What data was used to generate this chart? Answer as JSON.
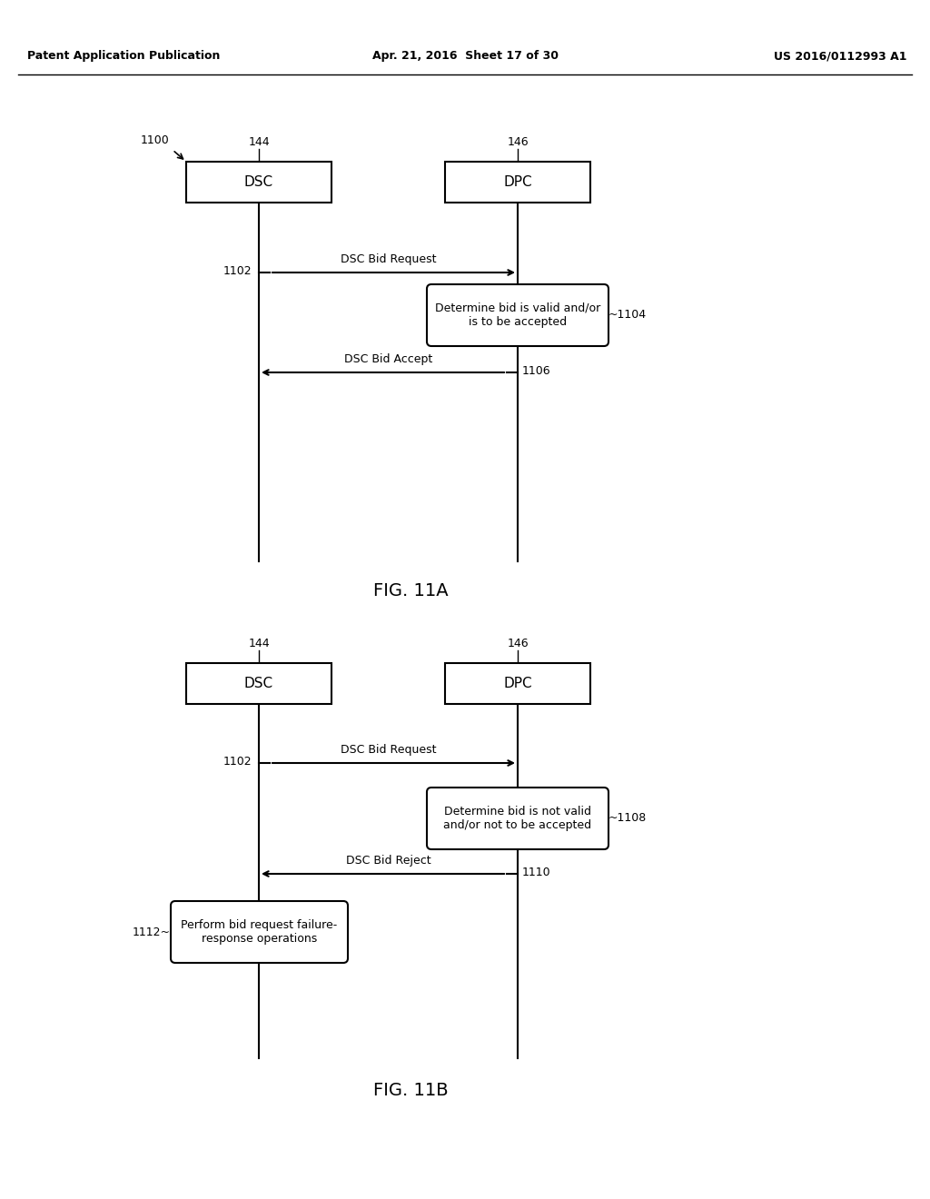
{
  "header_left": "Patent Application Publication",
  "header_mid": "Apr. 21, 2016  Sheet 17 of 30",
  "header_right": "US 2016/0112993 A1",
  "fig_a_label": "FIG. 11A",
  "fig_b_label": "FIG. 11B",
  "bg_color": "#ffffff",
  "diag_a": {
    "label_1100": "1100",
    "dsc_label": "144",
    "dpc_label": "146",
    "dsc_box_text": "DSC",
    "dpc_box_text": "DPC",
    "arrow1_label": "DSC Bid Request",
    "arrow1_ref": "1102",
    "box1_text": "Determine bid is valid and/or\nis to be accepted",
    "box1_ref": "1104",
    "arrow2_label": "DSC Bid Accept",
    "arrow2_ref": "1106"
  },
  "diag_b": {
    "dsc_label": "144",
    "dpc_label": "146",
    "dsc_box_text": "DSC",
    "dpc_box_text": "DPC",
    "arrow1_label": "DSC Bid Request",
    "arrow1_ref": "1102",
    "box1_text": "Determine bid is not valid\nand/or not to be accepted",
    "box1_ref": "1108",
    "arrow2_label": "DSC Bid Reject",
    "arrow2_ref": "1110",
    "box2_text": "Perform bid request failure-\nresponse operations",
    "box2_ref": "1112"
  }
}
